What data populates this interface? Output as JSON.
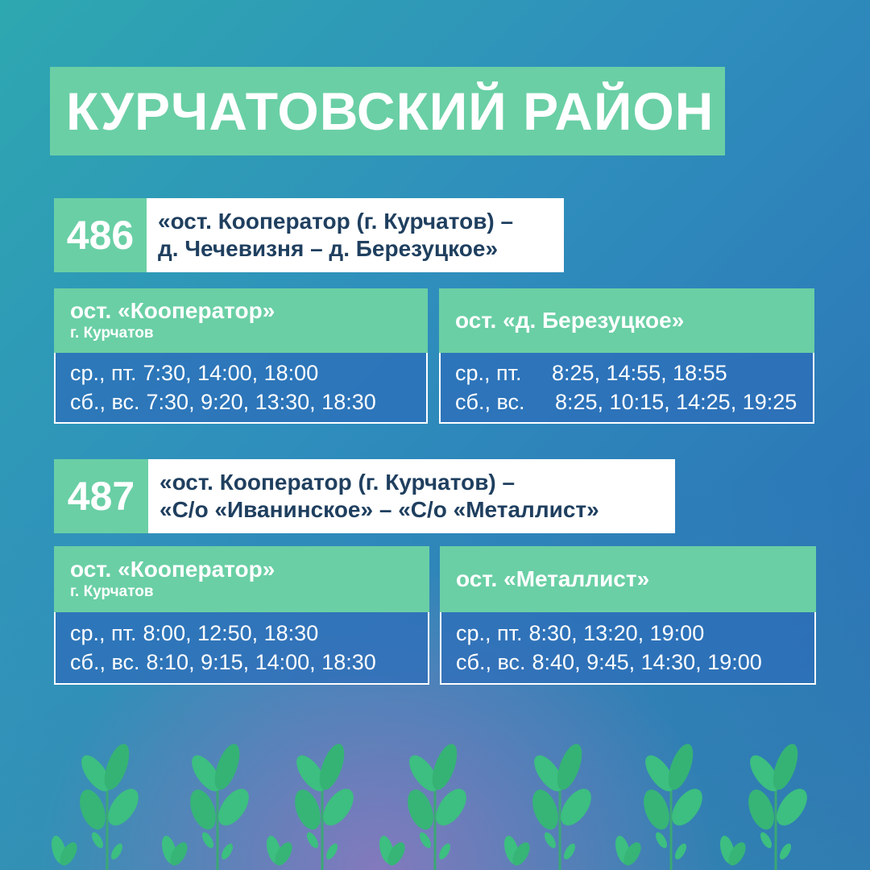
{
  "title": "КУРЧАТОВСКИЙ РАЙОН",
  "routes": [
    {
      "number": "486",
      "line1": "«ост. Кооператор (г. Курчатов) –",
      "line2": "д. Чечевизня – д. Березуцкое»",
      "stops": [
        {
          "name": "ост. «Кооператор»",
          "city": "г. Курчатов",
          "rows": [
            {
              "days": "ср., пт.",
              "times": "7:30, 14:00, 18:00"
            },
            {
              "days": "сб., вс.",
              "times": "7:30, 9:20, 13:30, 18:30"
            }
          ]
        },
        {
          "name": "ост. «д. Березуцкое»",
          "rows": [
            {
              "days": "ср., пт.",
              "times": "8:25, 14:55, 18:55"
            },
            {
              "days": "сб., вс.",
              "times": "8:25, 10:15, 14:25, 19:25"
            }
          ]
        }
      ]
    },
    {
      "number": "487",
      "line1": "«ост. Кооператор (г. Курчатов) –",
      "line2": "«С/о «Иванинское» – «С/о «Металлист»",
      "stops": [
        {
          "name": "ост. «Кооператор»",
          "city": "г. Курчатов",
          "rows": [
            {
              "days": "ср., пт.",
              "times": "8:00, 12:50, 18:30"
            },
            {
              "days": "сб., вс.",
              "times": "8:10, 9:15, 14:00, 18:30"
            }
          ]
        },
        {
          "name": "ост. «Металлист»",
          "rows": [
            {
              "days": "ср., пт.",
              "times": "8:30, 13:20, 19:00"
            },
            {
              "days": "сб., вс.",
              "times": "8:40, 9:45, 14:30, 19:00"
            }
          ]
        }
      ]
    }
  ],
  "colors": {
    "green": "#6acfa5",
    "dark_text": "#1f3f5f",
    "blue": "#2a6ab5"
  },
  "decor": "sprout-plants"
}
